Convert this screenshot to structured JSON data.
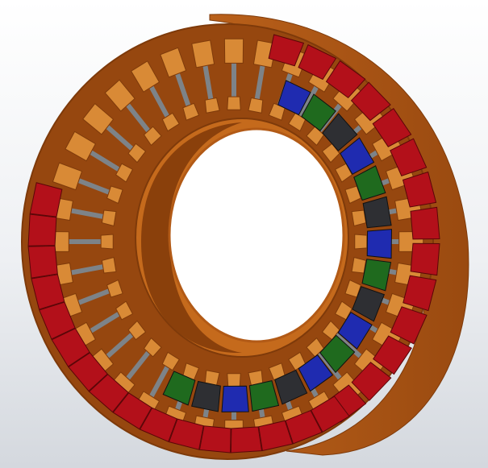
{
  "viewport": {
    "background_top": "#ffffff",
    "background_bottom": "#d4d8de"
  },
  "model": {
    "part": "stator-ring-with-windings",
    "slot_count": 36,
    "colors": {
      "iron": "#a24f14",
      "iron_face": "#96470f",
      "iron_edge": "#7e3a0a",
      "bore_inner": "#c56a1c",
      "bore_shadow": "#6d3208",
      "slot_wall": "#d98a36",
      "insulation": "#7d8388",
      "phase_a": "#b3101a",
      "phase_b": "#1f2bb0",
      "phase_c": "#1f6a1e",
      "phase_d": "#2e2f33"
    },
    "inner_coil_sequence": [
      "phase_b",
      "phase_c",
      "phase_d",
      "phase_b",
      "phase_c",
      "phase_d",
      "phase_b",
      "phase_c",
      "phase_d",
      "phase_b",
      "phase_c",
      "phase_b",
      "phase_d",
      "phase_c",
      "phase_b",
      "phase_d",
      "phase_c"
    ]
  }
}
